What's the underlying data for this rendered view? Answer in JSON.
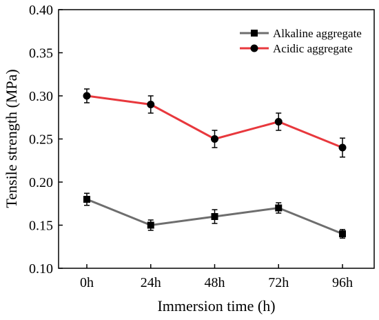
{
  "chart_data": {
    "type": "line",
    "categories": [
      "0h",
      "24h",
      "48h",
      "72h",
      "96h"
    ],
    "xlabel": "Immersion time (h)",
    "ylabel": "Tensile strength (MPa)",
    "ylim": [
      0.1,
      0.4
    ],
    "yticks": [
      0.1,
      0.15,
      0.2,
      0.25,
      0.3,
      0.35,
      0.4
    ],
    "ytick_labels": [
      "0.10",
      "0.15",
      "0.20",
      "0.25",
      "0.30",
      "0.35",
      "0.40"
    ],
    "grid": false,
    "legend_position": "top-right",
    "series": [
      {
        "name": "Alkaline aggregate",
        "marker": "square",
        "color": "#6e6e6e",
        "values": [
          0.18,
          0.15,
          0.16,
          0.17,
          0.14
        ],
        "errors": [
          0.007,
          0.006,
          0.008,
          0.006,
          0.005
        ]
      },
      {
        "name": "Acidic aggregate",
        "marker": "circle",
        "color": "#e8383d",
        "values": [
          0.3,
          0.29,
          0.25,
          0.27,
          0.24
        ],
        "errors": [
          0.008,
          0.01,
          0.01,
          0.01,
          0.011
        ]
      }
    ]
  }
}
